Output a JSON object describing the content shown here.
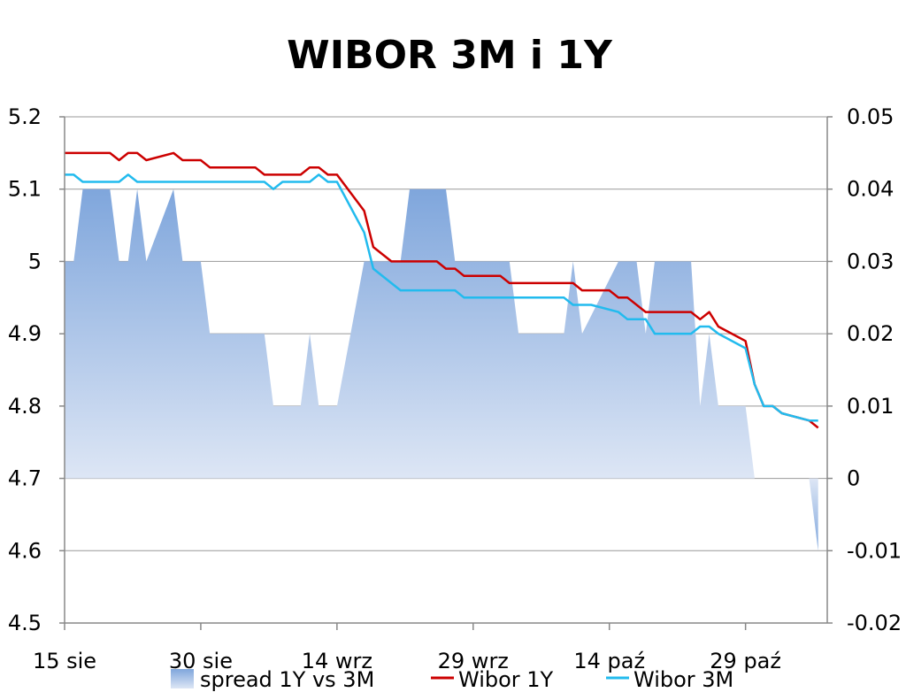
{
  "chart_data": {
    "type": "line",
    "title": "WIBOR 3M i 1Y",
    "xlabel": "",
    "ylabel": "",
    "x_tick_labels": [
      "15 sie",
      "30 sie",
      "14 wrz",
      "29 wrz",
      "14 paź",
      "29 paź"
    ],
    "x_range": [
      0,
      84
    ],
    "y_left": {
      "min": 4.5,
      "max": 5.2,
      "ticks": [
        "5.2",
        "5.1",
        "5",
        "4.9",
        "4.8",
        "4.7",
        "4.6",
        "4.5"
      ]
    },
    "y_right": {
      "min": -0.02,
      "max": 0.05,
      "ticks": [
        "0.05",
        "0.04",
        "0.03",
        "0.02",
        "0.01",
        "0",
        "-0.01",
        "-0.02"
      ]
    },
    "grid": true,
    "legend_position": "bottom",
    "colors": {
      "wibor_1y": "#cc0000",
      "wibor_3m": "#22bbee",
      "spread_top": "#7fa6dc",
      "spread_bottom": "#dde6f5",
      "grid": "#999999",
      "axis": "#888888"
    },
    "series": [
      {
        "name": "spread 1Y vs 3M",
        "axis": "right",
        "kind": "area",
        "points": [
          [
            0,
            0.03
          ],
          [
            1,
            0.03
          ],
          [
            2,
            0.04
          ],
          [
            5,
            0.04
          ],
          [
            6,
            0.03
          ],
          [
            7,
            0.03
          ],
          [
            8,
            0.04
          ],
          [
            9,
            0.03
          ],
          [
            12,
            0.04
          ],
          [
            13,
            0.03
          ],
          [
            15,
            0.03
          ],
          [
            16,
            0.02
          ],
          [
            22,
            0.02
          ],
          [
            23,
            0.01
          ],
          [
            26,
            0.01
          ],
          [
            27,
            0.02
          ],
          [
            28,
            0.01
          ],
          [
            30,
            0.01
          ],
          [
            33,
            0.03
          ],
          [
            37,
            0.03
          ],
          [
            38,
            0.04
          ],
          [
            42,
            0.04
          ],
          [
            43,
            0.03
          ],
          [
            49,
            0.03
          ],
          [
            50,
            0.02
          ],
          [
            55,
            0.02
          ],
          [
            56,
            0.03
          ],
          [
            57,
            0.02
          ],
          [
            61,
            0.03
          ],
          [
            63,
            0.03
          ],
          [
            64,
            0.02
          ],
          [
            65,
            0.03
          ],
          [
            69,
            0.03
          ],
          [
            70,
            0.01
          ],
          [
            71,
            0.02
          ],
          [
            72,
            0.01
          ],
          [
            75,
            0.01
          ],
          [
            76,
            0
          ],
          [
            82,
            0
          ],
          [
            83,
            -0.01
          ]
        ]
      },
      {
        "name": "Wibor 1Y",
        "axis": "left",
        "kind": "line",
        "points": [
          [
            0,
            5.15
          ],
          [
            5,
            5.15
          ],
          [
            6,
            5.14
          ],
          [
            7,
            5.15
          ],
          [
            8,
            5.15
          ],
          [
            9,
            5.14
          ],
          [
            12,
            5.15
          ],
          [
            13,
            5.14
          ],
          [
            15,
            5.14
          ],
          [
            16,
            5.13
          ],
          [
            21,
            5.13
          ],
          [
            22,
            5.12
          ],
          [
            26,
            5.12
          ],
          [
            27,
            5.13
          ],
          [
            28,
            5.13
          ],
          [
            29,
            5.12
          ],
          [
            30,
            5.12
          ],
          [
            33,
            5.07
          ],
          [
            34,
            5.02
          ],
          [
            36,
            5.0
          ],
          [
            41,
            5.0
          ],
          [
            42,
            4.99
          ],
          [
            43,
            4.99
          ],
          [
            44,
            4.98
          ],
          [
            48,
            4.98
          ],
          [
            49,
            4.97
          ],
          [
            56,
            4.97
          ],
          [
            57,
            4.96
          ],
          [
            60,
            4.96
          ],
          [
            61,
            4.95
          ],
          [
            62,
            4.95
          ],
          [
            64,
            4.93
          ],
          [
            69,
            4.93
          ],
          [
            70,
            4.92
          ],
          [
            71,
            4.93
          ],
          [
            72,
            4.91
          ],
          [
            75,
            4.89
          ],
          [
            76,
            4.83
          ],
          [
            77,
            4.8
          ],
          [
            78,
            4.8
          ],
          [
            79,
            4.79
          ],
          [
            82,
            4.78
          ],
          [
            83,
            4.77
          ]
        ]
      },
      {
        "name": "Wibor 3M",
        "axis": "left",
        "kind": "line",
        "points": [
          [
            0,
            5.12
          ],
          [
            1,
            5.12
          ],
          [
            2,
            5.11
          ],
          [
            6,
            5.11
          ],
          [
            7,
            5.12
          ],
          [
            8,
            5.11
          ],
          [
            22,
            5.11
          ],
          [
            23,
            5.1
          ],
          [
            24,
            5.11
          ],
          [
            27,
            5.11
          ],
          [
            28,
            5.12
          ],
          [
            29,
            5.11
          ],
          [
            30,
            5.11
          ],
          [
            33,
            5.04
          ],
          [
            34,
            4.99
          ],
          [
            37,
            4.96
          ],
          [
            43,
            4.96
          ],
          [
            44,
            4.95
          ],
          [
            55,
            4.95
          ],
          [
            56,
            4.94
          ],
          [
            58,
            4.94
          ],
          [
            61,
            4.93
          ],
          [
            62,
            4.92
          ],
          [
            64,
            4.92
          ],
          [
            65,
            4.9
          ],
          [
            69,
            4.9
          ],
          [
            70,
            4.91
          ],
          [
            71,
            4.91
          ],
          [
            72,
            4.9
          ],
          [
            75,
            4.88
          ],
          [
            76,
            4.83
          ],
          [
            77,
            4.8
          ],
          [
            78,
            4.8
          ],
          [
            79,
            4.79
          ],
          [
            82,
            4.78
          ],
          [
            83,
            4.78
          ]
        ]
      }
    ]
  }
}
